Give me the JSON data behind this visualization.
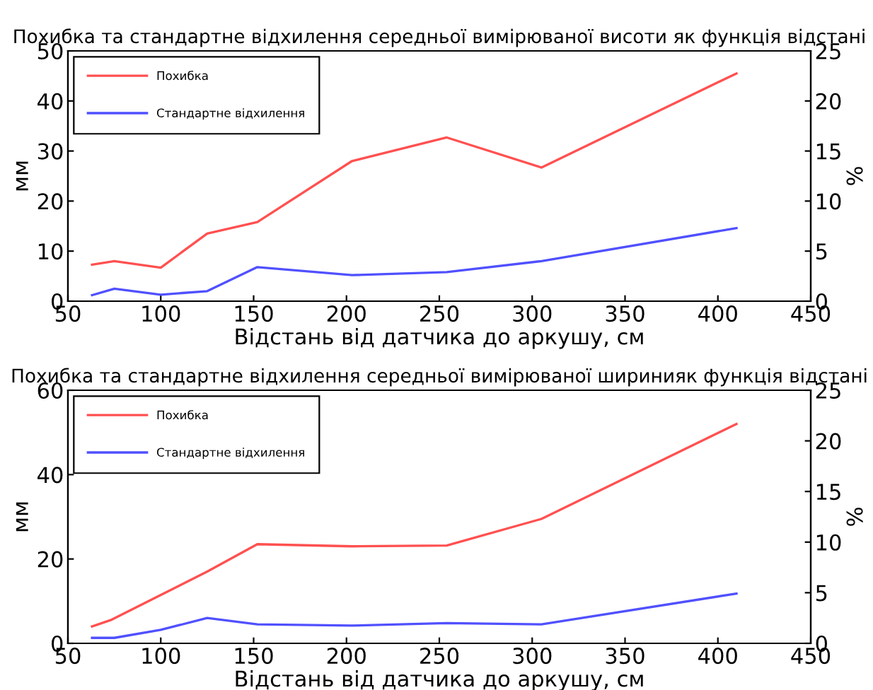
{
  "chart_data": [
    {
      "type": "line",
      "title": "Похибка та стандартне відхилення середньої вимірюваної висоти як функція відстані",
      "xlabel": "Відстань від датчика до аркушу, см",
      "ylabel": "мм",
      "y2label": "%",
      "xlim": [
        50,
        450
      ],
      "xticks": [
        50,
        100,
        150,
        200,
        250,
        300,
        350,
        400,
        450
      ],
      "ylim": [
        0,
        50
      ],
      "yticks": [
        0,
        10,
        20,
        30,
        40,
        50
      ],
      "y2lim": [
        0,
        25
      ],
      "y2ticks": [
        0,
        5,
        10,
        15,
        20,
        25
      ],
      "legend": "top left",
      "grid": false,
      "series": [
        {
          "name": "Похибка",
          "color": "#ff5050",
          "x": [
            63,
            75,
            100,
            125,
            152,
            203,
            254,
            305,
            410
          ],
          "values": [
            7.3,
            8,
            6.7,
            13.5,
            15.8,
            28,
            32.7,
            26.7,
            45.5
          ]
        },
        {
          "name": "Стандартне відхилення",
          "color": "#5050ff",
          "x": [
            63,
            75,
            100,
            125,
            152,
            203,
            254,
            305,
            410
          ],
          "values": [
            1.2,
            2.5,
            1.3,
            2,
            6.8,
            5.2,
            5.8,
            8,
            14.6
          ]
        }
      ]
    },
    {
      "type": "line",
      "title": "Похибка та стандартне відхилення середньої вимірюваної ширинияк функція відстані",
      "xlabel": "Відстань від датчика до аркушу, см",
      "ylabel": "мм",
      "y2label": "%",
      "xlim": [
        50,
        450
      ],
      "xticks": [
        50,
        100,
        150,
        200,
        250,
        300,
        350,
        400,
        450
      ],
      "ylim": [
        0,
        60
      ],
      "yticks": [
        0,
        20,
        40,
        60
      ],
      "y2lim": [
        0,
        25
      ],
      "y2ticks": [
        0,
        5,
        10,
        15,
        20,
        25
      ],
      "legend": "top left",
      "grid": false,
      "series": [
        {
          "name": "Похибка",
          "color": "#ff5050",
          "x": [
            63,
            73,
            125,
            152,
            203,
            254,
            305,
            410
          ],
          "values": [
            4,
            5.5,
            17,
            23.5,
            23,
            23.2,
            29.5,
            52
          ]
        },
        {
          "name": "Стандартне відхилення",
          "color": "#5050ff",
          "x": [
            63,
            75,
            100,
            125,
            152,
            203,
            254,
            305,
            410
          ],
          "values": [
            1.3,
            1.3,
            3.2,
            6,
            4.5,
            4.2,
            4.8,
            4.5,
            11.8
          ]
        }
      ]
    }
  ]
}
